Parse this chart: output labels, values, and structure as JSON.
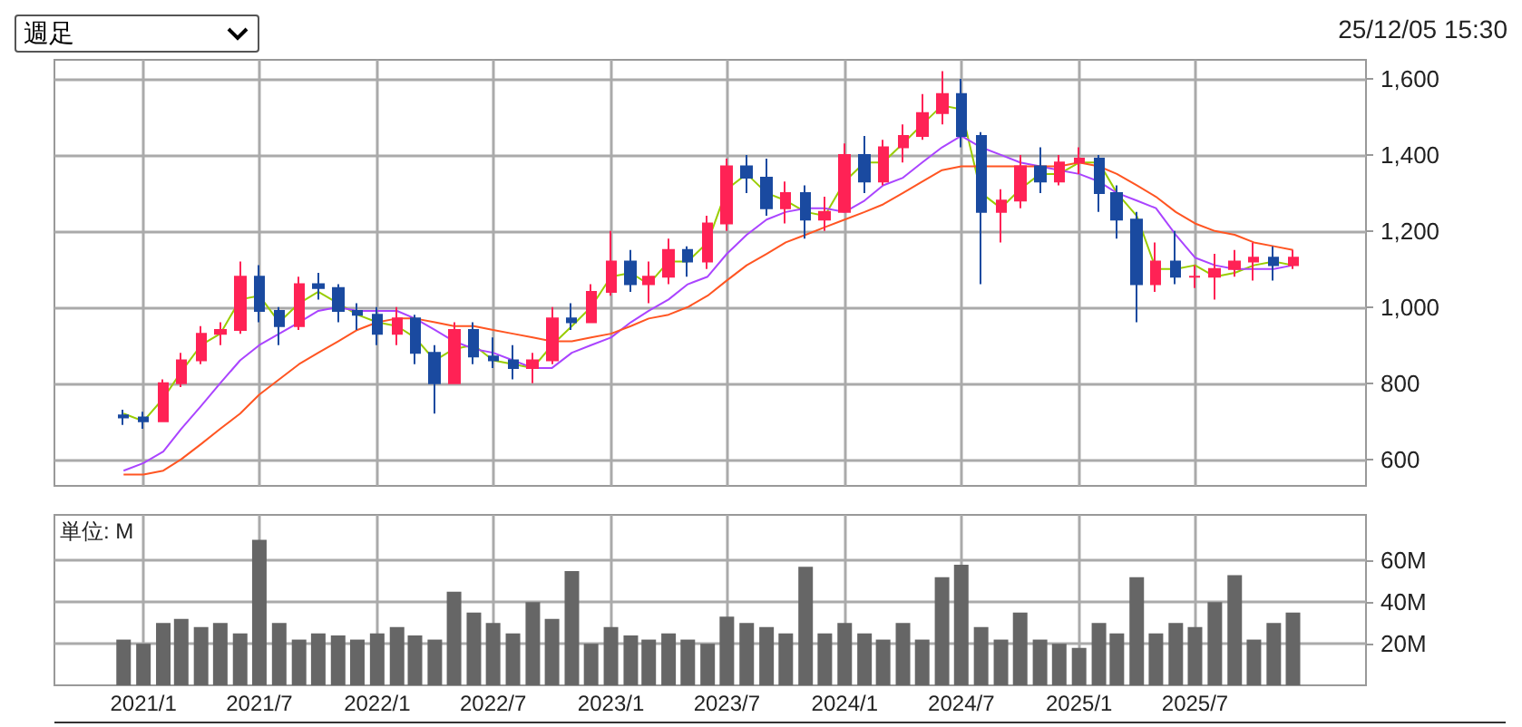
{
  "chart_data": [
    {
      "type": "candlestick",
      "annotations": [
        "週足",
        "25/12/05 15:30"
      ],
      "x": [
        "2020-12",
        "2021-01",
        "2021-02",
        "2021-03",
        "2021-04",
        "2021-05",
        "2021-06",
        "2021-07",
        "2021-08",
        "2021-09",
        "2021-10",
        "2021-11",
        "2021-12",
        "2022-01",
        "2022-02",
        "2022-03",
        "2022-04",
        "2022-05",
        "2022-06",
        "2022-07",
        "2022-08",
        "2022-09",
        "2022-10",
        "2022-11",
        "2022-12",
        "2023-01",
        "2023-02",
        "2023-03",
        "2023-04",
        "2023-05",
        "2023-06",
        "2023-07",
        "2023-08",
        "2023-09",
        "2023-10",
        "2023-11",
        "2023-12",
        "2024-01",
        "2024-02",
        "2024-03",
        "2024-04",
        "2024-05",
        "2024-06",
        "2024-07",
        "2024-08",
        "2024-09",
        "2024-10",
        "2024-11",
        "2024-12",
        "2025-01",
        "2025-02",
        "2025-03",
        "2025-04",
        "2025-05",
        "2025-06",
        "2025-07",
        "2025-08",
        "2025-09",
        "2025-10",
        "2025-11",
        "2025-12"
      ],
      "series": [
        {
          "type": "candlestick",
          "colors": [
            "#1a4aa0",
            "#1a4aa0",
            "#ff2255",
            "#ff2255",
            "#ff2255",
            "#ff2255",
            "#ff2255",
            "#1a4aa0",
            "#1a4aa0",
            "#ff2255",
            "#1a4aa0",
            "#1a4aa0",
            "#1a4aa0",
            "#1a4aa0",
            "#ff2255",
            "#1a4aa0",
            "#1a4aa0",
            "#ff2255",
            "#1a4aa0",
            "#1a4aa0",
            "#1a4aa0",
            "#ff2255",
            "#ff2255",
            "#1a4aa0",
            "#ff2255",
            "#ff2255",
            "#1a4aa0",
            "#ff2255",
            "#ff2255",
            "#1a4aa0",
            "#ff2255",
            "#ff2255",
            "#1a4aa0",
            "#1a4aa0",
            "#ff2255",
            "#1a4aa0",
            "#ff2255",
            "#ff2255",
            "#1a4aa0",
            "#ff2255",
            "#ff2255",
            "#ff2255",
            "#ff2255",
            "#1a4aa0",
            "#1a4aa0",
            "#ff2255",
            "#ff2255",
            "#1a4aa0",
            "#ff2255",
            "#ff2255",
            "#1a4aa0",
            "#1a4aa0",
            "#1a4aa0",
            "#ff2255",
            "#1a4aa0",
            "#ff2255",
            "#ff2255",
            "#ff2255",
            "#ff2255",
            "#1a4aa0",
            "#ff2255"
          ],
          "ohlc": [
            [
              715,
              730,
              690,
              710
            ],
            [
              710,
              725,
              680,
              700
            ],
            [
              700,
              810,
              700,
              800
            ],
            [
              800,
              880,
              790,
              860
            ],
            [
              860,
              950,
              850,
              930
            ],
            [
              930,
              960,
              900,
              940
            ],
            [
              940,
              1120,
              930,
              1080
            ],
            [
              1080,
              1110,
              960,
              990
            ],
            [
              990,
              1000,
              900,
              950
            ],
            [
              950,
              1080,
              940,
              1060
            ],
            [
              1060,
              1090,
              1020,
              1050
            ],
            [
              1050,
              1060,
              960,
              990
            ],
            [
              990,
              1010,
              940,
              980
            ],
            [
              980,
              1000,
              900,
              930
            ],
            [
              930,
              1000,
              900,
              970
            ],
            [
              970,
              980,
              850,
              880
            ],
            [
              880,
              900,
              720,
              800
            ],
            [
              800,
              960,
              800,
              940
            ],
            [
              940,
              960,
              850,
              870
            ],
            [
              870,
              920,
              840,
              860
            ],
            [
              860,
              900,
              810,
              840
            ],
            [
              840,
              880,
              800,
              860
            ],
            [
              860,
              1000,
              850,
              970
            ],
            [
              970,
              1010,
              940,
              960
            ],
            [
              960,
              1060,
              960,
              1040
            ],
            [
              1040,
              1200,
              1030,
              1120
            ],
            [
              1120,
              1150,
              1040,
              1060
            ],
            [
              1060,
              1120,
              1010,
              1080
            ],
            [
              1080,
              1180,
              1060,
              1150
            ],
            [
              1150,
              1160,
              1080,
              1120
            ],
            [
              1120,
              1240,
              1100,
              1220
            ],
            [
              1220,
              1390,
              1200,
              1370
            ],
            [
              1370,
              1400,
              1300,
              1340
            ],
            [
              1340,
              1390,
              1240,
              1260
            ],
            [
              1260,
              1330,
              1220,
              1300
            ],
            [
              1300,
              1320,
              1180,
              1230
            ],
            [
              1230,
              1290,
              1200,
              1250
            ],
            [
              1250,
              1430,
              1250,
              1400
            ],
            [
              1400,
              1450,
              1300,
              1330
            ],
            [
              1330,
              1440,
              1320,
              1420
            ],
            [
              1420,
              1480,
              1380,
              1450
            ],
            [
              1450,
              1560,
              1440,
              1510
            ],
            [
              1510,
              1620,
              1480,
              1560
            ],
            [
              1560,
              1600,
              1420,
              1450
            ],
            [
              1450,
              1460,
              1060,
              1250
            ],
            [
              1250,
              1310,
              1170,
              1280
            ],
            [
              1280,
              1400,
              1260,
              1370
            ],
            [
              1370,
              1420,
              1300,
              1330
            ],
            [
              1330,
              1400,
              1320,
              1380
            ],
            [
              1380,
              1420,
              1350,
              1390
            ],
            [
              1390,
              1400,
              1250,
              1300
            ],
            [
              1300,
              1320,
              1180,
              1230
            ],
            [
              1230,
              1250,
              960,
              1060
            ],
            [
              1060,
              1170,
              1040,
              1120
            ],
            [
              1120,
              1200,
              1060,
              1080
            ],
            [
              1080,
              1110,
              1050,
              1080
            ],
            [
              1080,
              1140,
              1020,
              1100
            ],
            [
              1100,
              1150,
              1080,
              1120
            ],
            [
              1120,
              1170,
              1070,
              1130
            ],
            [
              1130,
              1160,
              1070,
              1110
            ],
            [
              1110,
              1150,
              1100,
              1130
            ]
          ]
        },
        {
          "type": "line",
          "color": "#99cc00",
          "values": [
            720,
            700,
            760,
            830,
            900,
            930,
            1020,
            1030,
            960,
            1010,
            1040,
            1010,
            980,
            960,
            950,
            920,
            860,
            890,
            900,
            860,
            850,
            840,
            900,
            950,
            1000,
            1080,
            1090,
            1060,
            1120,
            1120,
            1170,
            1310,
            1350,
            1300,
            1280,
            1250,
            1240,
            1330,
            1380,
            1380,
            1430,
            1480,
            1530,
            1520,
            1300,
            1260,
            1310,
            1350,
            1350,
            1380,
            1380,
            1300,
            1240,
            1100,
            1100,
            1110,
            1080,
            1090,
            1110,
            1120,
            1110
          ]
        },
        {
          "type": "line",
          "color": "#aa44ff",
          "values": [
            570,
            590,
            620,
            680,
            740,
            800,
            860,
            900,
            930,
            960,
            990,
            1000,
            990,
            990,
            990,
            970,
            940,
            910,
            890,
            880,
            860,
            840,
            840,
            880,
            900,
            920,
            960,
            990,
            1020,
            1060,
            1080,
            1140,
            1190,
            1230,
            1250,
            1260,
            1260,
            1250,
            1280,
            1320,
            1340,
            1380,
            1420,
            1450,
            1420,
            1400,
            1380,
            1370,
            1360,
            1350,
            1330,
            1300,
            1280,
            1260,
            1190,
            1130,
            1110,
            1100,
            1100,
            1100,
            1110
          ]
        },
        {
          "type": "line",
          "color": "#ff5522",
          "values": [
            560,
            560,
            570,
            600,
            640,
            680,
            720,
            770,
            810,
            850,
            880,
            910,
            940,
            960,
            970,
            970,
            960,
            950,
            950,
            940,
            930,
            920,
            910,
            910,
            920,
            930,
            950,
            970,
            980,
            1000,
            1030,
            1070,
            1110,
            1140,
            1170,
            1190,
            1210,
            1230,
            1250,
            1270,
            1300,
            1330,
            1360,
            1370,
            1370,
            1370,
            1370,
            1370,
            1370,
            1380,
            1370,
            1350,
            1320,
            1290,
            1250,
            1220,
            1200,
            1190,
            1170,
            1160,
            1150
          ]
        }
      ],
      "marker": "none",
      "xlim": [
        "2020-08-15",
        "2026-03-25"
      ],
      "xticks": [
        {
          "value": "2021-01",
          "label": null
        },
        {
          "value": "2021-07",
          "label": null
        },
        {
          "value": "2022-01",
          "label": null
        },
        {
          "value": "2022-07",
          "label": null
        },
        {
          "value": "2023-01",
          "label": null
        },
        {
          "value": "2023-07",
          "label": null
        },
        {
          "value": "2024-01",
          "label": null
        },
        {
          "value": "2024-07",
          "label": null
        },
        {
          "value": "2025-01",
          "label": null
        },
        {
          "value": "2025-07",
          "label": null
        }
      ],
      "ylim": [
        530,
        1650
      ],
      "yticks": [
        600,
        800,
        {
          "value": 1000,
          "label": "1,000"
        },
        {
          "value": 1200,
          "label": "1,200"
        },
        {
          "value": 1400,
          "label": "1,400"
        },
        {
          "value": 1600,
          "label": "1,600"
        }
      ],
      "grid": true,
      "tick_labels": "y"
    },
    {
      "type": "bar",
      "annotations": [
        "単位: M"
      ],
      "color": "#666666",
      "x": [
        "2020-12",
        "2021-01",
        "2021-02",
        "2021-03",
        "2021-04",
        "2021-05",
        "2021-06",
        "2021-07",
        "2021-08",
        "2021-09",
        "2021-10",
        "2021-11",
        "2021-12",
        "2022-01",
        "2022-02",
        "2022-03",
        "2022-04",
        "2022-05",
        "2022-06",
        "2022-07",
        "2022-08",
        "2022-09",
        "2022-10",
        "2022-11",
        "2022-12",
        "2023-01",
        "2023-02",
        "2023-03",
        "2023-04",
        "2023-05",
        "2023-06",
        "2023-07",
        "2023-08",
        "2023-09",
        "2023-10",
        "2023-11",
        "2023-12",
        "2024-01",
        "2024-02",
        "2024-03",
        "2024-04",
        "2024-05",
        "2024-06",
        "2024-07",
        "2024-08",
        "2024-09",
        "2024-10",
        "2024-11",
        "2024-12",
        "2025-01",
        "2025-02",
        "2025-03",
        "2025-04",
        "2025-05",
        "2025-06",
        "2025-07",
        "2025-08",
        "2025-09",
        "2025-10",
        "2025-11",
        "2025-12"
      ],
      "values": [
        22,
        20,
        30,
        32,
        28,
        30,
        25,
        70,
        30,
        22,
        25,
        24,
        22,
        25,
        28,
        24,
        22,
        45,
        35,
        30,
        25,
        40,
        32,
        55,
        20,
        28,
        24,
        22,
        25,
        22,
        20,
        33,
        30,
        28,
        25,
        57,
        25,
        30,
        25,
        22,
        30,
        22,
        52,
        58,
        28,
        22,
        35,
        22,
        20,
        18,
        30,
        25,
        52,
        25,
        30,
        28,
        40,
        53,
        22,
        30,
        35
      ],
      "xlim": [
        "2020-08-15",
        "2026-03-25"
      ],
      "xticks": [
        {
          "value": "2021-01",
          "label": "2021/1"
        },
        {
          "value": "2021-07",
          "label": "2021/7"
        },
        {
          "value": "2022-01",
          "label": "2022/1"
        },
        {
          "value": "2022-07",
          "label": "2022/7"
        },
        {
          "value": "2023-01",
          "label": "2023/1"
        },
        {
          "value": "2023-07",
          "label": "2023/7"
        },
        {
          "value": "2024-01",
          "label": "2024/1"
        },
        {
          "value": "2024-07",
          "label": "2024/7"
        },
        {
          "value": "2025-01",
          "label": "2025/1"
        },
        {
          "value": "2025-07",
          "label": "2025/7"
        }
      ],
      "ylim": [
        0,
        82
      ],
      "yticks": [
        {
          "value": 20,
          "label": "20M"
        },
        {
          "value": 40,
          "label": "40M"
        },
        {
          "value": 60,
          "label": "60M"
        }
      ],
      "grid": true
    }
  ]
}
